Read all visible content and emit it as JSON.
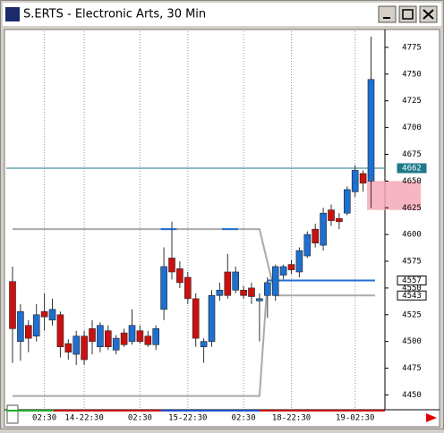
{
  "window_title": "S.ERTS - Electronic Arts, 30 Min",
  "chart_data": {
    "type": "candlestick",
    "categories": [
      null,
      null,
      null,
      null,
      "02:30",
      null,
      null,
      null,
      null,
      "14-22:30",
      null,
      null,
      null,
      null,
      null,
      null,
      "02:30",
      null,
      null,
      null,
      null,
      null,
      "15-22:30",
      null,
      null,
      null,
      null,
      null,
      null,
      "02:30",
      null,
      null,
      null,
      null,
      null,
      "18-22:30",
      null,
      null,
      null,
      null,
      null,
      null,
      null,
      "19-02:30",
      null,
      null
    ],
    "open": [
      4556,
      4500,
      4515,
      4505,
      4528,
      4520,
      4525,
      4498,
      4488,
      4505,
      4512,
      4495,
      4510,
      4492,
      4508,
      4500,
      4510,
      4505,
      4497,
      4530,
      4578,
      4568,
      4560,
      4540,
      4495,
      4500,
      4543,
      4565,
      4548,
      4548,
      4550,
      4538,
      4543,
      4543,
      4562,
      4572,
      4565,
      4580,
      4605,
      4590,
      4623,
      4615,
      4620,
      4640,
      4657,
      4650
    ],
    "high": [
      4570,
      4535,
      4520,
      4535,
      4545,
      4540,
      4528,
      4502,
      4510,
      4510,
      4520,
      4518,
      4515,
      4506,
      4512,
      4530,
      4515,
      4510,
      4515,
      4588,
      4612,
      4575,
      4565,
      4545,
      4503,
      4548,
      4555,
      4582,
      4570,
      4552,
      4555,
      4545,
      4560,
      4572,
      4572,
      4576,
      4588,
      4603,
      4610,
      4625,
      4628,
      4620,
      4645,
      4665,
      4660,
      4785
    ],
    "low": [
      4480,
      4482,
      4490,
      4500,
      4510,
      4515,
      4485,
      4483,
      4478,
      4478,
      4488,
      4490,
      4492,
      4488,
      4495,
      4497,
      4498,
      4495,
      4492,
      4520,
      4558,
      4550,
      4535,
      4495,
      4480,
      4495,
      4538,
      4540,
      4545,
      4540,
      4535,
      4500,
      4522,
      4538,
      4558,
      4563,
      4560,
      4578,
      4588,
      4585,
      4608,
      4605,
      4618,
      4635,
      4640,
      4625
    ],
    "close": [
      4512,
      4528,
      4503,
      4525,
      4523,
      4530,
      4495,
      4490,
      4505,
      4483,
      4500,
      4515,
      4495,
      4503,
      4497,
      4515,
      4500,
      4497,
      4512,
      4570,
      4565,
      4555,
      4540,
      4503,
      4500,
      4543,
      4548,
      4543,
      4565,
      4543,
      4542,
      4540,
      4555,
      4570,
      4570,
      4567,
      4585,
      4600,
      4592,
      4620,
      4613,
      4612,
      4642,
      4660,
      4648,
      4745
    ],
    "up_color": "#1e6fd0",
    "down_color": "#cc1010",
    "ylim": [
      4437,
      4790
    ],
    "yticks": [
      4450,
      4475,
      4500,
      4525,
      4550,
      4575,
      4600,
      4625,
      4650,
      4675,
      4700,
      4725,
      4750,
      4775
    ],
    "price_markers": [
      {
        "value": 4662,
        "color": "#1c7a8a"
      },
      {
        "value": 4557,
        "color": "#1e6fd0"
      },
      {
        "value": 4543,
        "color": "#777777"
      }
    ],
    "trendlines": [
      {
        "color": "#aaaaaa",
        "points": [
          [
            0,
            4605
          ],
          [
            31,
            4605
          ],
          [
            33,
            4543
          ],
          [
            45.5,
            4543
          ]
        ]
      },
      {
        "color": "#aaaaaa",
        "points": [
          [
            0,
            4449
          ],
          [
            31,
            4449
          ],
          [
            32,
            4557
          ]
        ]
      },
      {
        "color": "#1e6fd0",
        "points": [
          [
            32,
            4557
          ],
          [
            45.5,
            4557
          ]
        ]
      },
      {
        "color": "#1e6fd0",
        "points": [
          [
            18.6,
            4605
          ],
          [
            20.6,
            4605
          ]
        ]
      },
      {
        "color": "#1e6fd0",
        "points": [
          [
            26.3,
            4605
          ],
          [
            28.3,
            4605
          ]
        ]
      }
    ],
    "zones": [
      {
        "from": 4623,
        "to": 4650,
        "color": "#f5a8b8"
      }
    ]
  }
}
